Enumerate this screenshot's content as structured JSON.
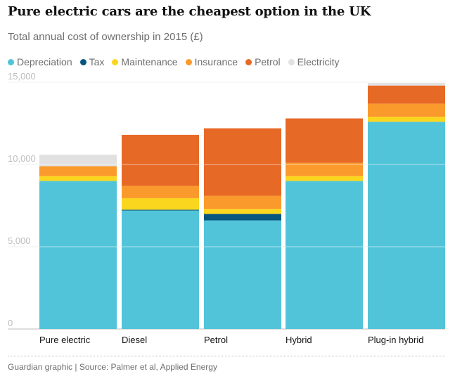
{
  "title": "Pure electric cars are the cheapest option in the UK",
  "subtitle": "Total annual cost of ownership in 2015 (£)",
  "source": "Guardian graphic | Source: Palmer et al, Applied Energy",
  "colors": {
    "Depreciation": "#52c4d9",
    "Tax": "#05557f",
    "Maintenance": "#fad61f",
    "Insurance": "#fb9a2c",
    "Petrol": "#e76926",
    "Electricity": "#e1e1e1"
  },
  "chart_data": {
    "type": "bar",
    "stacked": true,
    "categories": [
      "Pure electric",
      "Diesel",
      "Petrol",
      "Hybrid",
      "Plug-in hybrid"
    ],
    "series": [
      {
        "name": "Depreciation",
        "values": [
          9000,
          7200,
          6600,
          9000,
          12600
        ]
      },
      {
        "name": "Tax",
        "values": [
          0,
          50,
          400,
          0,
          0
        ]
      },
      {
        "name": "Maintenance",
        "values": [
          300,
          700,
          300,
          300,
          300
        ]
      },
      {
        "name": "Insurance",
        "values": [
          600,
          750,
          800,
          800,
          800
        ]
      },
      {
        "name": "Petrol",
        "values": [
          0,
          3100,
          4100,
          2700,
          1100
        ]
      },
      {
        "name": "Electricity",
        "values": [
          700,
          0,
          0,
          0,
          150
        ]
      }
    ],
    "y_ticks": [
      "0",
      "5,000",
      "10,000",
      "15,000"
    ],
    "y_tick_values": [
      0,
      5000,
      10000,
      15000
    ],
    "ylim": [
      0,
      15000
    ],
    "grid": true,
    "legend_position": "top"
  }
}
